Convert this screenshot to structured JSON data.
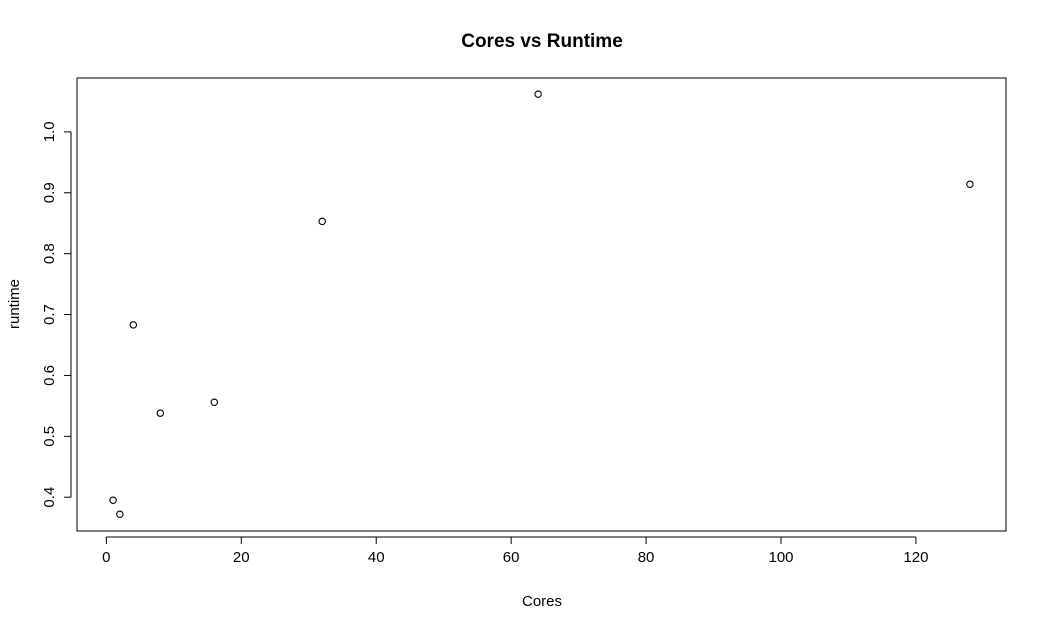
{
  "chart_data": {
    "type": "scatter",
    "title": "Cores vs Runtime",
    "xlabel": "Cores",
    "ylabel": "runtime",
    "xlim": [
      -4.35,
      133.35
    ],
    "ylim": [
      0.3445,
      1.0885
    ],
    "x_ticks": [
      0,
      20,
      40,
      60,
      80,
      100,
      120
    ],
    "y_ticks": [
      0.4,
      0.5,
      0.6,
      0.7,
      0.8,
      0.9,
      1.0
    ],
    "x_tick_labels": [
      "0",
      "20",
      "40",
      "60",
      "80",
      "100",
      "120"
    ],
    "y_tick_labels": [
      "0.4",
      "0.5",
      "0.6",
      "0.7",
      "0.8",
      "0.9",
      "1.0"
    ],
    "grid": false,
    "legend": "none",
    "points": [
      {
        "x": 1,
        "y": 0.395
      },
      {
        "x": 2,
        "y": 0.372
      },
      {
        "x": 4,
        "y": 0.683
      },
      {
        "x": 8,
        "y": 0.538
      },
      {
        "x": 16,
        "y": 0.556
      },
      {
        "x": 32,
        "y": 0.853
      },
      {
        "x": 64,
        "y": 1.062
      },
      {
        "x": 128,
        "y": 0.914
      }
    ]
  }
}
